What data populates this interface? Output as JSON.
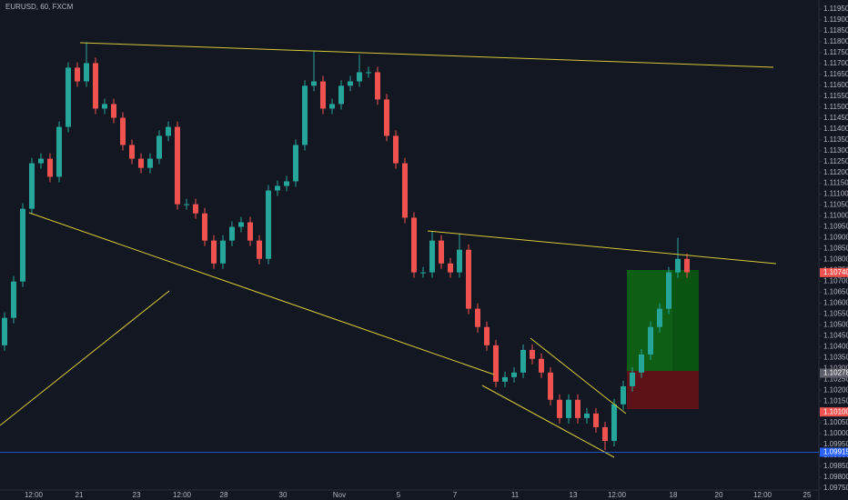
{
  "chart_data": {
    "type": "candlestick",
    "title": "EURUSD, 60, FXCM",
    "up_color": "#26a69a",
    "down_color": "#ef5350",
    "ylim": [
      1.0975,
      1.1195
    ],
    "yticks": [
      {
        "value": 1.0975,
        "label": "1.09750"
      },
      {
        "value": 1.098,
        "label": "1.09800"
      },
      {
        "value": 1.0985,
        "label": "1.09850"
      },
      {
        "value": 1.099,
        "label": "1.09900"
      },
      {
        "value": 1.0995,
        "label": "1.09950"
      },
      {
        "value": 1.1,
        "label": "1.10000"
      },
      {
        "value": 1.1005,
        "label": "1.10050"
      },
      {
        "value": 1.101,
        "label": "1.10100"
      },
      {
        "value": 1.1015,
        "label": "1.10150"
      },
      {
        "value": 1.102,
        "label": "1.10200"
      },
      {
        "value": 1.1025,
        "label": "1.10250"
      },
      {
        "value": 1.103,
        "label": "1.10300"
      },
      {
        "value": 1.1035,
        "label": "1.10350"
      },
      {
        "value": 1.104,
        "label": "1.10400"
      },
      {
        "value": 1.1045,
        "label": "1.10450"
      },
      {
        "value": 1.105,
        "label": "1.10500"
      },
      {
        "value": 1.1055,
        "label": "1.10550"
      },
      {
        "value": 1.106,
        "label": "1.10600"
      },
      {
        "value": 1.1065,
        "label": "1.10650"
      },
      {
        "value": 1.107,
        "label": "1.10700"
      },
      {
        "value": 1.1075,
        "label": "1.10750"
      },
      {
        "value": 1.108,
        "label": "1.10800"
      },
      {
        "value": 1.1085,
        "label": "1.10850"
      },
      {
        "value": 1.109,
        "label": "1.10900"
      },
      {
        "value": 1.1095,
        "label": "1.10950"
      },
      {
        "value": 1.11,
        "label": "1.11000"
      },
      {
        "value": 1.1105,
        "label": "1.11050"
      },
      {
        "value": 1.111,
        "label": "1.11100"
      },
      {
        "value": 1.1115,
        "label": "1.11150"
      },
      {
        "value": 1.112,
        "label": "1.11200"
      },
      {
        "value": 1.1125,
        "label": "1.11250"
      },
      {
        "value": 1.113,
        "label": "1.11300"
      },
      {
        "value": 1.1135,
        "label": "1.11350"
      },
      {
        "value": 1.114,
        "label": "1.11400"
      },
      {
        "value": 1.1145,
        "label": "1.11450"
      },
      {
        "value": 1.115,
        "label": "1.11500"
      },
      {
        "value": 1.1155,
        "label": "1.11550"
      },
      {
        "value": 1.116,
        "label": "1.11600"
      },
      {
        "value": 1.1165,
        "label": "1.11650"
      },
      {
        "value": 1.117,
        "label": "1.11700"
      },
      {
        "value": 1.1175,
        "label": "1.11750"
      },
      {
        "value": 1.118,
        "label": "1.11800"
      },
      {
        "value": 1.1185,
        "label": "1.11850"
      },
      {
        "value": 1.119,
        "label": "1.11900"
      },
      {
        "value": 1.1195,
        "label": "1.11950"
      }
    ],
    "categories": [
      "12:00",
      "21",
      "23",
      "12:00",
      "28",
      "30",
      "Nov",
      "5",
      "7",
      "11",
      "13",
      "12:00",
      "18",
      "20",
      "12:00",
      "25"
    ],
    "price_labels": [
      {
        "value": 1.1074,
        "label": "1.10740",
        "color": "#ef5350"
      },
      {
        "value": 1.10278,
        "label": "1.10278",
        "color": "#5d606b"
      },
      {
        "value": 1.101,
        "label": "1.10100",
        "color": "#ef5350"
      },
      {
        "value": 1.09915,
        "label": "1.09915",
        "color": "#2962ff"
      }
    ],
    "open": [
      1.10406,
      1.10532,
      1.10699,
      1.11033,
      1.11242,
      1.11263,
      1.1118,
      1.11409,
      1.11681,
      1.11618,
      1.11702,
      1.11493,
      1.11514,
      1.11451,
      1.11326,
      1.11263,
      1.11221,
      1.11263,
      1.11368,
      1.11409,
      1.11054,
      1.11054,
      1.11012,
      1.10887,
      1.10782,
      1.10887,
      1.1095,
      1.10971,
      1.10887,
      1.10803,
      1.11117,
      1.11138,
      1.11159,
      1.11326,
      1.11598,
      1.11618,
      1.11493,
      1.11514,
      1.11598,
      1.11618,
      1.1166,
      1.1166,
      1.11535,
      1.11368,
      1.11242,
      1.10992,
      1.10741,
      1.10741,
      1.10887,
      1.10782,
      1.10741,
      1.10845,
      1.10574,
      1.1049,
      1.10406,
      1.10239,
      1.1026,
      1.10281,
      1.10385,
      1.10344,
      1.10281,
      1.10156,
      1.10072,
      1.10156,
      1.10072,
      1.10093,
      1.1003,
      1.09967,
      1.10135,
      1.10218,
      1.10281,
      1.10364,
      1.1049,
      1.10574,
      1.10741,
      1.10803
    ],
    "high": [
      1.10557,
      1.10724,
      1.11058,
      1.11267,
      1.11288,
      1.11288,
      1.11434,
      1.11706,
      1.11706,
      1.11798,
      1.11727,
      1.11539,
      1.11539,
      1.11476,
      1.11351,
      1.11288,
      1.11288,
      1.11393,
      1.11434,
      1.11434,
      1.11079,
      1.11079,
      1.11037,
      1.10912,
      1.10912,
      1.10975,
      1.10996,
      1.10996,
      1.10912,
      1.11142,
      1.11163,
      1.11184,
      1.11351,
      1.11623,
      1.1176,
      1.11643,
      1.11539,
      1.11623,
      1.11643,
      1.1174,
      1.11685,
      1.11685,
      1.1156,
      1.11393,
      1.11267,
      1.11017,
      1.10766,
      1.1093,
      1.10912,
      1.10807,
      1.1092,
      1.1087,
      1.10599,
      1.10515,
      1.10431,
      1.10285,
      1.10306,
      1.1041,
      1.1041,
      1.10369,
      1.10306,
      1.10181,
      1.10181,
      1.10181,
      1.10118,
      1.10118,
      1.10055,
      1.1016,
      1.10243,
      1.10306,
      1.10389,
      1.10515,
      1.10599,
      1.10766,
      1.109,
      1.10828
    ],
    "low": [
      1.10381,
      1.10507,
      1.10674,
      1.11008,
      1.11217,
      1.11155,
      1.11155,
      1.11384,
      1.11593,
      1.11593,
      1.11468,
      1.11468,
      1.11426,
      1.11301,
      1.11238,
      1.11196,
      1.11196,
      1.11238,
      1.11343,
      1.11029,
      1.11029,
      1.10987,
      1.10862,
      1.10757,
      1.10757,
      1.10862,
      1.10925,
      1.10862,
      1.10778,
      1.10778,
      1.11092,
      1.11113,
      1.11134,
      1.11301,
      1.11573,
      1.11468,
      1.11468,
      1.11489,
      1.11573,
      1.11593,
      1.11635,
      1.1151,
      1.11343,
      1.11217,
      1.10967,
      1.10716,
      1.10716,
      1.10716,
      1.10757,
      1.10716,
      1.10716,
      1.10549,
      1.10465,
      1.10381,
      1.10214,
      1.10214,
      1.10235,
      1.10256,
      1.10319,
      1.10256,
      1.10131,
      1.10047,
      1.10047,
      1.10047,
      1.10047,
      1.10005,
      1.09925,
      1.09942,
      1.1011,
      1.10193,
      1.10256,
      1.10339,
      1.10465,
      1.10549,
      1.10716,
      1.10716
    ],
    "close": [
      1.10532,
      1.10699,
      1.11033,
      1.11242,
      1.11263,
      1.1118,
      1.11409,
      1.11681,
      1.11618,
      1.11702,
      1.11493,
      1.11514,
      1.11451,
      1.11326,
      1.11263,
      1.11221,
      1.11263,
      1.11368,
      1.11409,
      1.11054,
      1.11054,
      1.11012,
      1.10887,
      1.10782,
      1.10887,
      1.1095,
      1.10971,
      1.10887,
      1.10803,
      1.11117,
      1.11138,
      1.11159,
      1.11326,
      1.11598,
      1.11618,
      1.11493,
      1.11514,
      1.11598,
      1.11618,
      1.1166,
      1.1166,
      1.11535,
      1.11368,
      1.11242,
      1.10992,
      1.10741,
      1.10741,
      1.10887,
      1.10782,
      1.10741,
      1.10845,
      1.10574,
      1.1049,
      1.10406,
      1.10239,
      1.1026,
      1.10281,
      1.10385,
      1.10344,
      1.10281,
      1.10156,
      1.10072,
      1.10156,
      1.10072,
      1.10093,
      1.1003,
      1.09967,
      1.10135,
      1.10218,
      1.10281,
      1.10364,
      1.1049,
      1.10574,
      1.10741,
      1.10803,
      1.10741
    ]
  }
}
